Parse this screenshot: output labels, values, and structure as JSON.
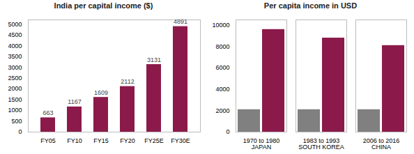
{
  "chart_data": [
    {
      "type": "bar",
      "title": "India per capital income ($)",
      "categories": [
        "FY05",
        "FY10",
        "FY15",
        "FY20",
        "FY25E",
        "FY30E"
      ],
      "values": [
        663,
        1167,
        1609,
        2112,
        3131,
        4891
      ],
      "color": "#8B1A4A",
      "ylim": [
        0,
        5200
      ],
      "yticks": [
        0,
        500,
        1000,
        1500,
        2000,
        2500,
        3000,
        3500,
        4000,
        4500,
        5000
      ],
      "data_labels": true,
      "grid": false
    },
    {
      "type": "bar",
      "title": "Per capita income in USD",
      "categories": [
        "1970 to 1980\nJAPAN",
        "1983 to 1993\nSOUTH KOREA",
        "2006 to 2016\nCHINA"
      ],
      "series": [
        {
          "color": "#808080",
          "values": [
            2100,
            2100,
            2100
          ]
        },
        {
          "color": "#8B1A4A",
          "values": [
            9600,
            8800,
            8100
          ]
        }
      ],
      "ylim": [
        0,
        10500
      ],
      "yticks": [
        0,
        2000,
        4000,
        6000,
        8000,
        10000
      ],
      "grid": false
    }
  ]
}
